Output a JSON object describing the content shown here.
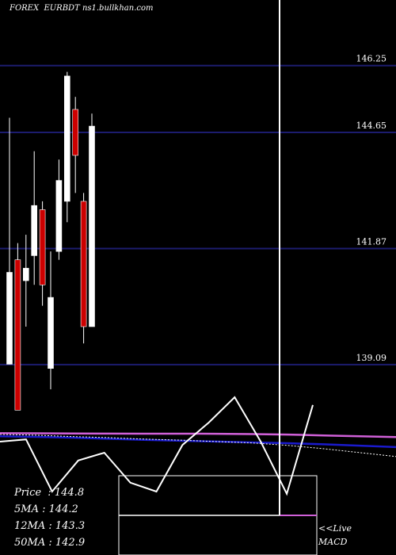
{
  "header": {
    "exchange": "FOREX",
    "symbol": "EURBDT",
    "source": "ns1.bullkhan.com"
  },
  "indicators": [
    {
      "label": "Price  : 144.8"
    },
    {
      "label": "5MA : 144.2"
    },
    {
      "label": "12MA : 143.3"
    },
    {
      "label": "50MA : 142.9"
    }
  ],
  "macd": {
    "live_label": "<<Live",
    "macd_label": "MACD"
  },
  "chart_data": {
    "type": "candlestick",
    "title": "",
    "y_axis_side": "right",
    "ylim": [
      137.95,
      147.25
    ],
    "y_ticks": [
      146.25,
      144.65,
      141.87,
      139.09
    ],
    "candles": [
      {
        "open": 141.3,
        "close": 139.1,
        "high": 145.0,
        "low": 139.1,
        "color": "white"
      },
      {
        "open": 141.6,
        "close": 138.0,
        "high": 142.0,
        "low": 138.0,
        "color": "red"
      },
      {
        "open": 141.4,
        "close": 141.1,
        "high": 142.2,
        "low": 140.0,
        "color": "white"
      },
      {
        "open": 141.7,
        "close": 142.9,
        "high": 144.2,
        "low": 141.0,
        "color": "white"
      },
      {
        "open": 142.8,
        "close": 141.0,
        "high": 143.0,
        "low": 140.5,
        "color": "red"
      },
      {
        "open": 139.0,
        "close": 140.7,
        "high": 141.8,
        "low": 138.5,
        "color": "white"
      },
      {
        "open": 141.8,
        "close": 143.5,
        "high": 144.0,
        "low": 141.6,
        "color": "white"
      },
      {
        "open": 143.0,
        "close": 146.0,
        "high": 146.1,
        "low": 142.5,
        "color": "white"
      },
      {
        "open": 145.2,
        "close": 144.1,
        "high": 145.5,
        "low": 143.2,
        "color": "red"
      },
      {
        "open": 143.0,
        "close": 140.0,
        "high": 143.2,
        "low": 139.6,
        "color": "red"
      },
      {
        "open": 140.0,
        "close": 144.8,
        "high": 145.1,
        "low": 140.0,
        "color": "white"
      }
    ],
    "moving_averages": [
      {
        "name": "",
        "color": "#1a1acc",
        "values": [
          0.575,
          0.585,
          0.6,
          0.62,
          0.64,
          0.655,
          0.67,
          0.685,
          0.7,
          0.72,
          0.745,
          0.77
        ]
      },
      {
        "name": "",
        "color": "#ffffff",
        "values": [
          0.54,
          0.555,
          0.58,
          0.6,
          0.625,
          0.645,
          0.67,
          0.695,
          0.74,
          0.8,
          0.87,
          0.94
        ]
      },
      {
        "name": "",
        "color": "#d060d8",
        "values": [
          0.52,
          0.522,
          0.525,
          0.527,
          0.528,
          0.528,
          0.53,
          0.535,
          0.545,
          0.56,
          0.575,
          0.59
        ]
      }
    ],
    "macd_line": [
      0.45,
      0.47,
      0.0,
      0.28,
      0.35,
      0.08,
      0.0,
      0.42,
      0.62,
      0.85,
      0.45,
      -0.02,
      0.78
    ]
  }
}
